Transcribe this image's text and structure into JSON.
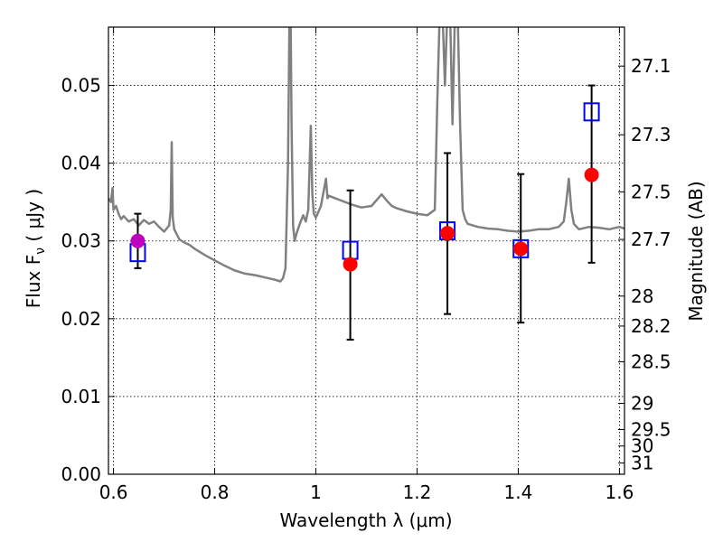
{
  "chart_data": {
    "type": "scatter",
    "xlabel": "Wavelength  λ (μm)",
    "ylabel": "Flux  F",
    "ylabel_sub": "ν",
    "ylabel_unit": "  ( μJy )",
    "y2label": "Magnitude (AB)",
    "xlim": [
      0.59,
      1.61
    ],
    "ylim": [
      0.0,
      0.0575
    ],
    "grid": true,
    "x_ticks": [
      0.6,
      0.8,
      1.0,
      1.2,
      1.4,
      1.6
    ],
    "x_tick_labels": [
      "0.6",
      "0.8",
      "1",
      "1.2",
      "1.4",
      "1.6"
    ],
    "y_ticks": [
      0.0,
      0.01,
      0.02,
      0.03,
      0.04,
      0.05
    ],
    "y_tick_labels": [
      "0.00",
      "0.01",
      "0.02",
      "0.03",
      "0.04",
      "0.05"
    ],
    "y2_ticks": [
      27.1,
      27.3,
      27.5,
      27.7,
      28,
      28.2,
      28.5,
      29,
      29.5,
      30,
      31
    ],
    "y2_tick_labels": [
      "27.1",
      "27.3",
      "27.5",
      "27.7",
      "28",
      "28.2",
      "28.5",
      "29",
      "29.5",
      "30",
      "31"
    ],
    "colors": {
      "template": "#808080",
      "model": "#0000ff",
      "observed": "#ff0000",
      "observed_first": "#bf00bf",
      "errorbar": "#000000",
      "grid": "#808080"
    },
    "series": [
      {
        "kind": "line",
        "x": [
          0.59,
          0.595,
          0.598,
          0.6,
          0.605,
          0.61,
          0.615,
          0.62,
          0.63,
          0.64,
          0.65,
          0.66,
          0.67,
          0.68,
          0.69,
          0.7,
          0.71,
          0.713,
          0.715,
          0.717,
          0.72,
          0.73,
          0.74,
          0.75,
          0.76,
          0.78,
          0.8,
          0.82,
          0.84,
          0.86,
          0.88,
          0.9,
          0.92,
          0.93,
          0.935,
          0.94,
          0.945,
          0.948,
          0.95,
          0.952,
          0.955,
          0.958,
          0.962,
          0.97,
          0.975,
          0.98,
          0.985,
          0.99,
          0.993,
          0.996,
          1.0,
          1.01,
          1.02,
          1.023,
          1.026,
          1.03,
          1.05,
          1.07,
          1.09,
          1.11,
          1.13,
          1.14,
          1.15,
          1.16,
          1.18,
          1.2,
          1.22,
          1.235,
          1.24,
          1.245,
          1.25,
          1.255,
          1.26,
          1.265,
          1.27,
          1.275,
          1.28,
          1.285,
          1.29,
          1.295,
          1.3,
          1.32,
          1.34,
          1.36,
          1.38,
          1.4,
          1.42,
          1.44,
          1.46,
          1.48,
          1.49,
          1.495,
          1.5,
          1.505,
          1.51,
          1.52,
          1.54,
          1.56,
          1.58,
          1.6,
          1.61
        ],
        "y": [
          0.0355,
          0.035,
          0.0368,
          0.034,
          0.0345,
          0.0335,
          0.0328,
          0.0332,
          0.0325,
          0.0328,
          0.032,
          0.0327,
          0.0322,
          0.0325,
          0.0318,
          0.0312,
          0.032,
          0.034,
          0.0427,
          0.033,
          0.0315,
          0.0302,
          0.0298,
          0.0295,
          0.029,
          0.0282,
          0.0275,
          0.0268,
          0.0262,
          0.0258,
          0.0256,
          0.0253,
          0.025,
          0.0248,
          0.0252,
          0.0265,
          0.04,
          0.06,
          0.06,
          0.045,
          0.032,
          0.03,
          0.031,
          0.0325,
          0.0333,
          0.0325,
          0.034,
          0.0448,
          0.036,
          0.0335,
          0.033,
          0.0345,
          0.038,
          0.0355,
          0.0358,
          0.0357,
          0.0352,
          0.0347,
          0.0343,
          0.0345,
          0.036,
          0.0352,
          0.0345,
          0.0342,
          0.0338,
          0.0335,
          0.0333,
          0.034,
          0.048,
          0.06,
          0.06,
          0.05,
          0.06,
          0.06,
          0.045,
          0.06,
          0.06,
          0.045,
          0.034,
          0.0328,
          0.0322,
          0.0318,
          0.0316,
          0.0315,
          0.0313,
          0.0312,
          0.0313,
          0.0315,
          0.0315,
          0.0318,
          0.0325,
          0.035,
          0.038,
          0.034,
          0.0322,
          0.0315,
          0.0318,
          0.0317,
          0.0315,
          0.0318,
          0.0316
        ]
      },
      {
        "kind": "errorbar",
        "x": [
          0.648,
          1.068,
          1.26,
          1.405,
          1.545
        ],
        "y": [
          0.03,
          0.027,
          0.031,
          0.029,
          0.0385
        ],
        "ylow": [
          0.0265,
          0.0173,
          0.0206,
          0.0195,
          0.0272
        ],
        "yhigh": [
          0.0335,
          0.0365,
          0.0413,
          0.0386,
          0.05
        ]
      },
      {
        "kind": "scatter-square",
        "x": [
          0.648,
          1.068,
          1.26,
          1.405,
          1.545
        ],
        "y": [
          0.0285,
          0.0288,
          0.0313,
          0.029,
          0.0466
        ]
      },
      {
        "kind": "scatter-circle",
        "x": [
          0.648,
          1.068,
          1.26,
          1.405,
          1.545
        ],
        "y": [
          0.03,
          0.027,
          0.031,
          0.029,
          0.0385
        ]
      }
    ]
  }
}
